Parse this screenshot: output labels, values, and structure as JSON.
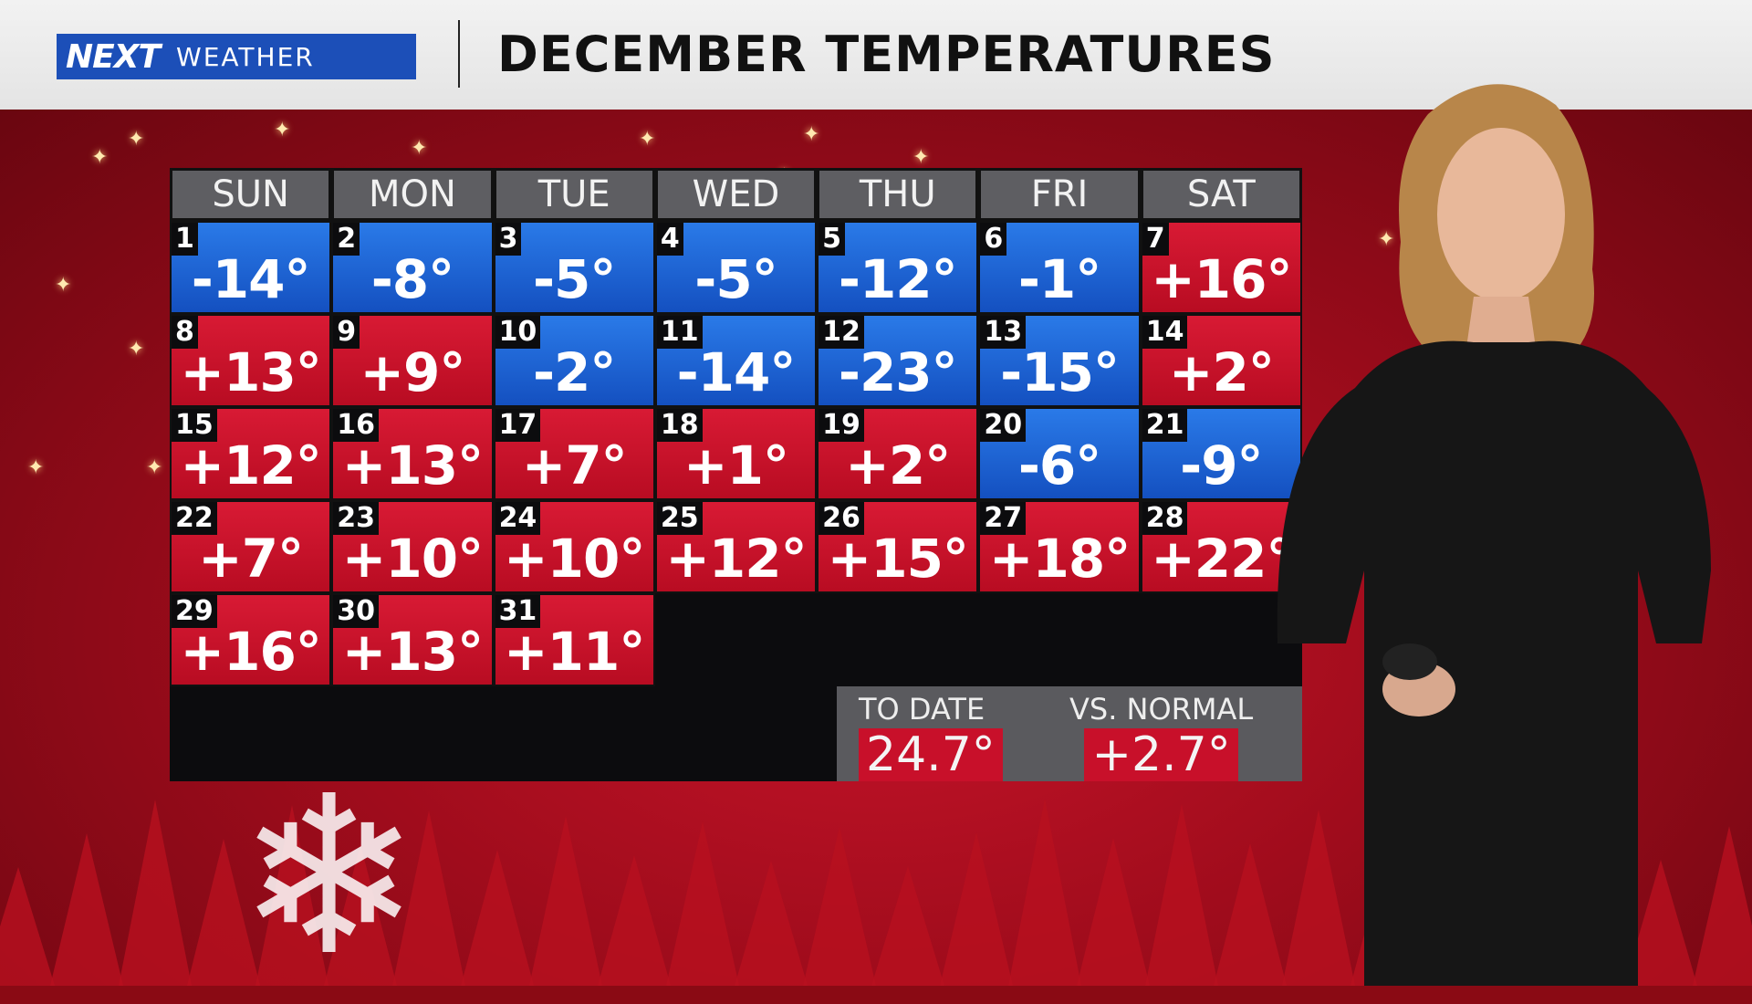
{
  "header": {
    "logo_next": "NEXT",
    "logo_weather": "WEATHER",
    "title": "DECEMBER TEMPERATURES"
  },
  "calendar": {
    "days_of_week": [
      "SUN",
      "MON",
      "TUE",
      "WED",
      "THU",
      "FRI",
      "SAT"
    ],
    "colors": {
      "below_normal": "#1a64d4",
      "above_normal": "#cc1228"
    },
    "start_weekday": 0,
    "days": [
      {
        "day": "1",
        "temp": "-14°"
      },
      {
        "day": "2",
        "temp": "-8°"
      },
      {
        "day": "3",
        "temp": "-5°"
      },
      {
        "day": "4",
        "temp": "-5°"
      },
      {
        "day": "5",
        "temp": "-12°"
      },
      {
        "day": "6",
        "temp": "-1°"
      },
      {
        "day": "7",
        "temp": "+16°"
      },
      {
        "day": "8",
        "temp": "+13°"
      },
      {
        "day": "9",
        "temp": "+9°"
      },
      {
        "day": "10",
        "temp": "-2°"
      },
      {
        "day": "11",
        "temp": "-14°"
      },
      {
        "day": "12",
        "temp": "-23°"
      },
      {
        "day": "13",
        "temp": "-15°"
      },
      {
        "day": "14",
        "temp": "+2°"
      },
      {
        "day": "15",
        "temp": "+12°"
      },
      {
        "day": "16",
        "temp": "+13°"
      },
      {
        "day": "17",
        "temp": "+7°"
      },
      {
        "day": "18",
        "temp": "+1°"
      },
      {
        "day": "19",
        "temp": "+2°"
      },
      {
        "day": "20",
        "temp": "-6°"
      },
      {
        "day": "21",
        "temp": "-9°"
      },
      {
        "day": "22",
        "temp": "+7°"
      },
      {
        "day": "23",
        "temp": "+10°"
      },
      {
        "day": "24",
        "temp": "+10°"
      },
      {
        "day": "25",
        "temp": "+12°"
      },
      {
        "day": "26",
        "temp": "+15°"
      },
      {
        "day": "27",
        "temp": "+18°"
      },
      {
        "day": "28",
        "temp": "+22°"
      },
      {
        "day": "29",
        "temp": "+16°"
      },
      {
        "day": "30",
        "temp": "+13°"
      },
      {
        "day": "31",
        "temp": "+11°"
      }
    ]
  },
  "stats": {
    "to_date_label": "TO DATE",
    "to_date_value": "24.7°",
    "vs_normal_label": "VS. NORMAL",
    "vs_normal_value": "+2.7°"
  }
}
